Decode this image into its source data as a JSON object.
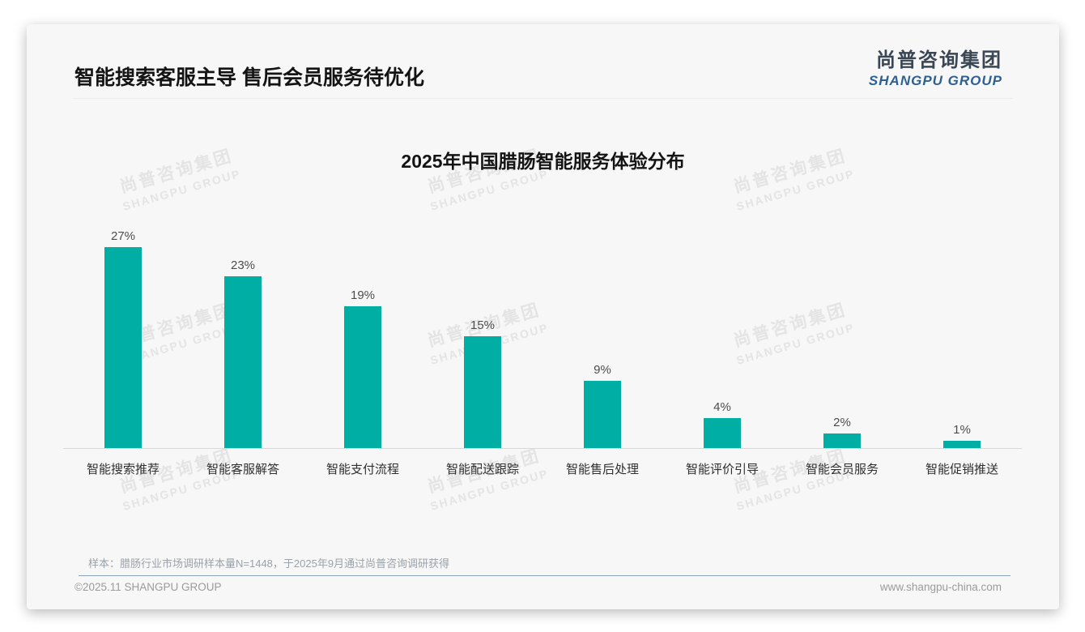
{
  "page": {
    "title": "智能搜索客服主导 售后会员服务待优化",
    "logo": {
      "cn": "尚普咨询集团",
      "en": "SHANGPU GROUP"
    },
    "watermark": {
      "cn": "尚普咨询集团",
      "en": "SHANGPU GROUP"
    },
    "note": "样本：腊肠行业市场调研样本量N=1448，于2025年9月通过尚普咨询调研获得",
    "footer": {
      "left": "©2025.11 SHANGPU GROUP",
      "right": "www.shangpu-china.com"
    }
  },
  "chart_data": {
    "type": "bar",
    "title": "2025年中国腊肠智能服务体验分布",
    "categories": [
      "智能搜索推荐",
      "智能客服解答",
      "智能支付流程",
      "智能配送跟踪",
      "智能售后处理",
      "智能评价引导",
      "智能会员服务",
      "智能促销推送"
    ],
    "values": [
      27,
      23,
      19,
      15,
      9,
      4,
      2,
      1
    ],
    "value_labels": [
      "27%",
      "23%",
      "19%",
      "15%",
      "9%",
      "4%",
      "2%",
      "1%"
    ],
    "unit": "%",
    "bar_color": "#00AEA4",
    "xlabel": "",
    "ylabel": "",
    "ylim": [
      0,
      30
    ],
    "grid": false,
    "legend": false,
    "value_labels_position": "above-bars"
  }
}
